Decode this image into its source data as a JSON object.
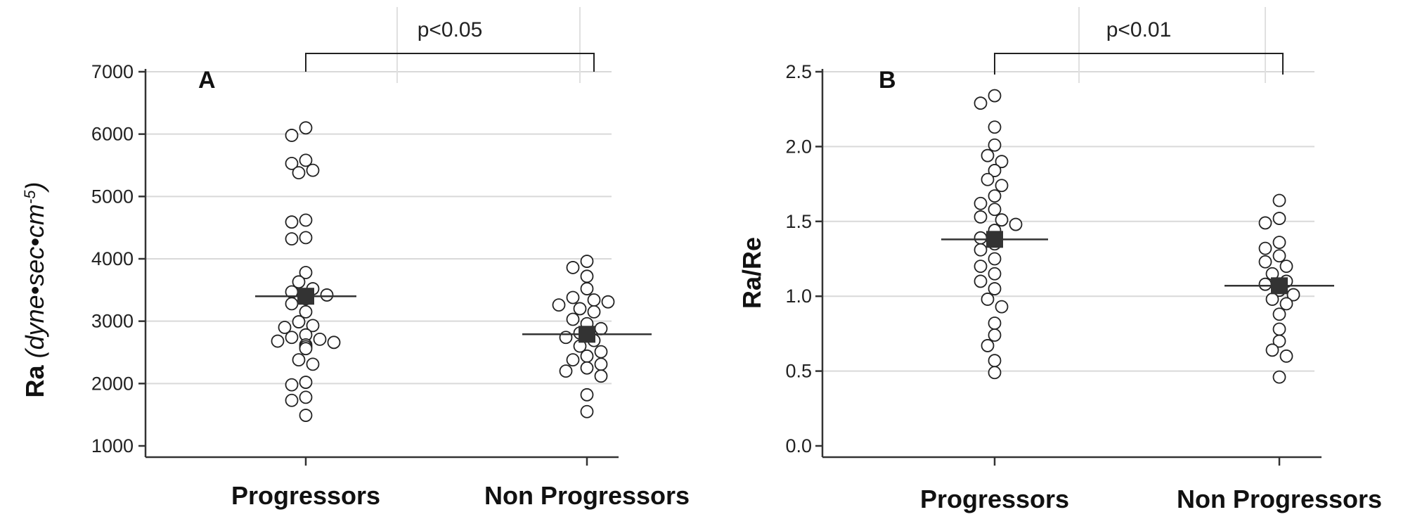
{
  "chart_data": [
    {
      "type": "scatter",
      "panel_label": "A",
      "categories": [
        "Progressors",
        "Non Progressors"
      ],
      "ylabel": "Ra",
      "ylabel_units": "(dyne•sec•cm",
      "ylabel_units_sup": "-5",
      "ylabel_units_close": ")",
      "ylim": [
        1000,
        7000
      ],
      "yticks": [
        "1000",
        "2000",
        "3000",
        "4000",
        "5000",
        "6000",
        "7000"
      ],
      "ytick_values": [
        1000,
        2000,
        3000,
        4000,
        5000,
        6000,
        7000
      ],
      "grid": true,
      "significance": "p<0.05",
      "series": [
        {
          "values": [
            6100,
            5980,
            5580,
            5530,
            5420,
            5380,
            4620,
            4590,
            4340,
            4320,
            3780,
            3630,
            3520,
            3470,
            3420,
            3360,
            3280,
            3150,
            2990,
            2930,
            2900,
            2780,
            2740,
            2710,
            2680,
            2660,
            2620,
            2590,
            2560,
            2380,
            2310,
            2020,
            1980,
            1780,
            1730,
            1490
          ],
          "mean": 3400
        },
        {
          "values": [
            3960,
            3860,
            3720,
            3520,
            3380,
            3340,
            3310,
            3260,
            3200,
            3150,
            3030,
            2960,
            2880,
            2810,
            2740,
            2690,
            2600,
            2510,
            2440,
            2380,
            2310,
            2250,
            2200,
            2120,
            1820,
            1550
          ],
          "mean": 2790
        }
      ]
    },
    {
      "type": "scatter",
      "panel_label": "B",
      "categories": [
        "Progressors",
        "Non Progressors"
      ],
      "ylabel": "Ra/Re",
      "ylim": [
        0.0,
        2.5
      ],
      "yticks": [
        "0.0",
        "0.5",
        "1.0",
        "1.5",
        "2.0",
        "2.5"
      ],
      "ytick_values": [
        0.0,
        0.5,
        1.0,
        1.5,
        2.0,
        2.5
      ],
      "grid": true,
      "significance": "p<0.01",
      "series": [
        {
          "values": [
            2.34,
            2.29,
            2.13,
            2.01,
            1.94,
            1.9,
            1.84,
            1.78,
            1.74,
            1.67,
            1.62,
            1.58,
            1.53,
            1.51,
            1.48,
            1.44,
            1.39,
            1.35,
            1.31,
            1.25,
            1.2,
            1.15,
            1.1,
            1.05,
            0.98,
            0.93,
            0.82,
            0.74,
            0.67,
            0.57,
            0.49
          ],
          "mean": 1.38
        },
        {
          "values": [
            1.64,
            1.52,
            1.49,
            1.36,
            1.32,
            1.27,
            1.23,
            1.2,
            1.15,
            1.1,
            1.08,
            1.04,
            1.01,
            0.98,
            0.95,
            0.88,
            0.78,
            0.7,
            0.64,
            0.6,
            0.46
          ],
          "mean": 1.07
        }
      ]
    }
  ]
}
